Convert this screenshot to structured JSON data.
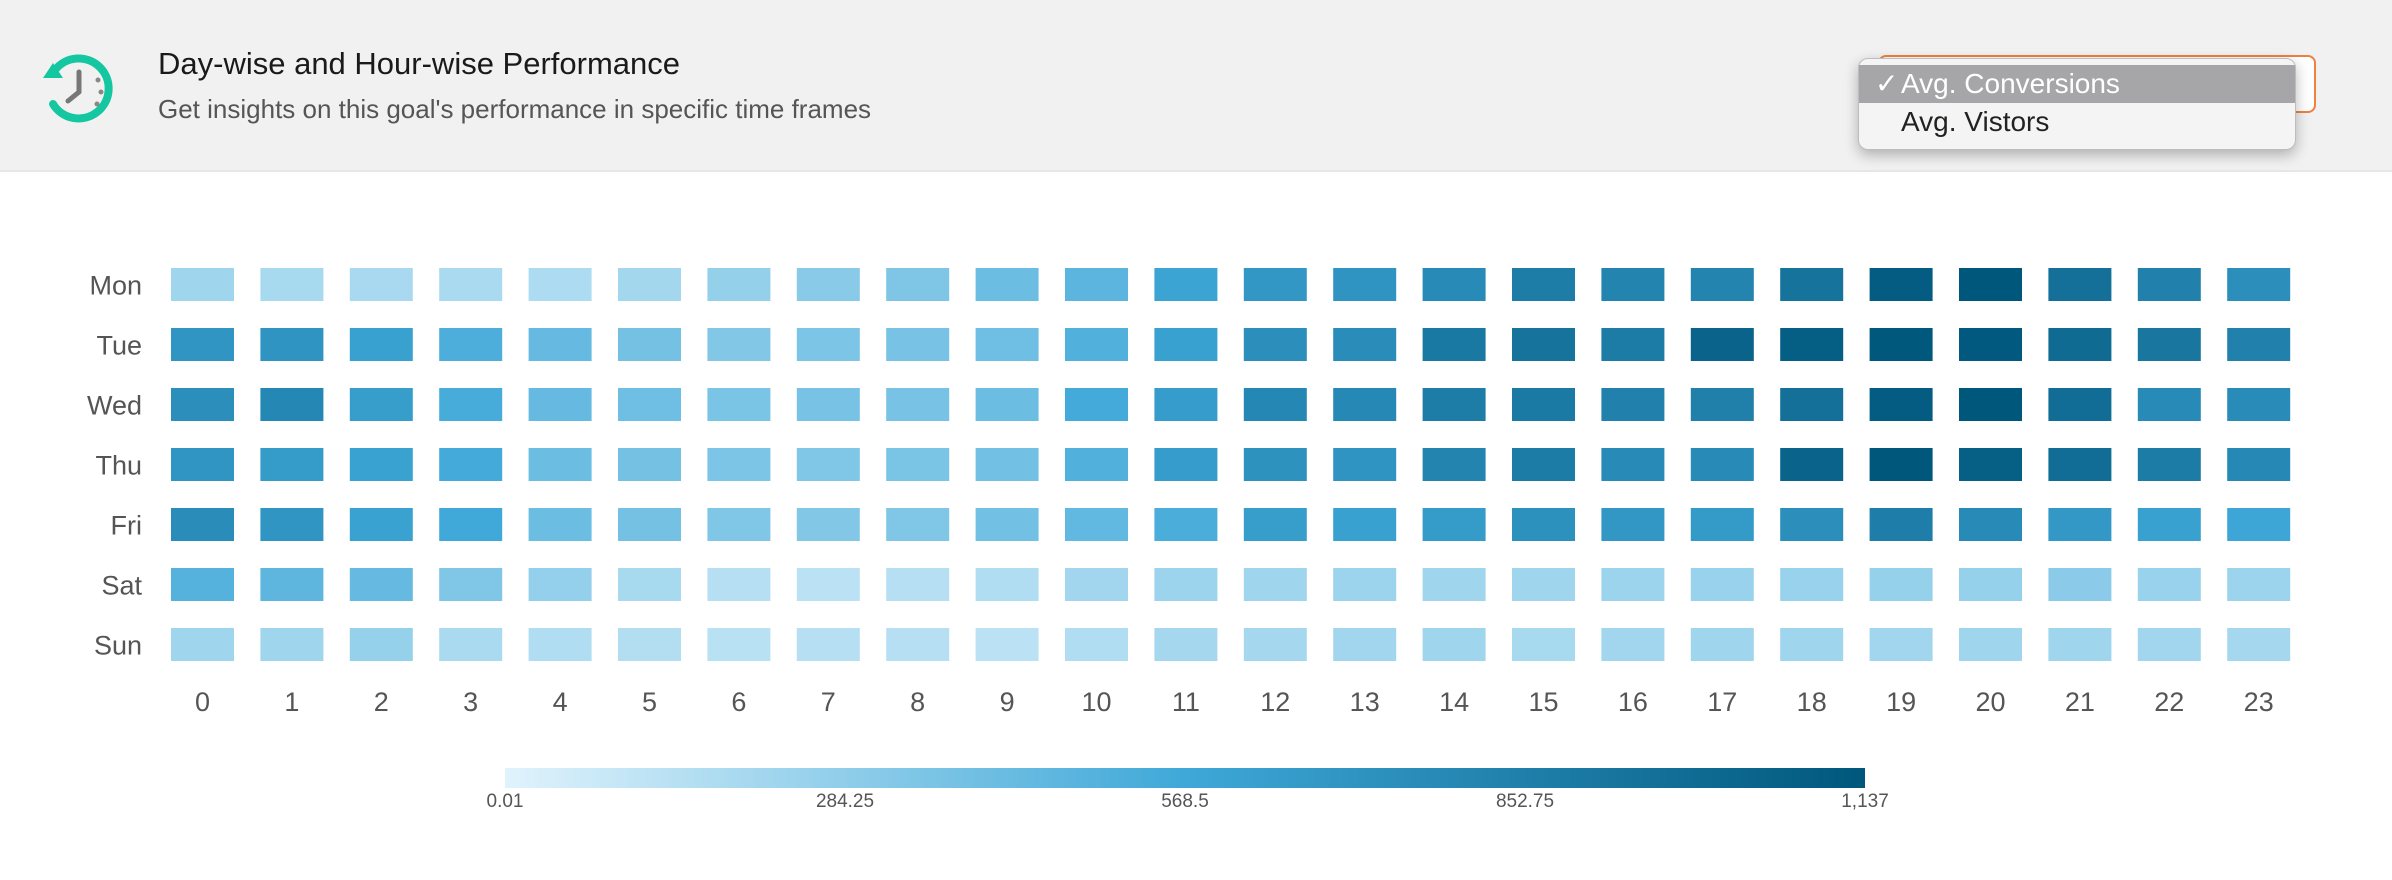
{
  "header": {
    "title": "Day-wise and Hour-wise Performance",
    "subtitle": "Get insights on this goal's performance in specific time frames",
    "icon": "clock-history-icon"
  },
  "metric_select": {
    "options": [
      "Avg. Conversions",
      "Avg. Vistors"
    ],
    "selected": "Avg. Conversions",
    "check_mark": "✓"
  },
  "colors": {
    "scale_min": "#e0f3fc",
    "scale_mid": "#3fa8d8",
    "scale_max": "#00577c",
    "accent": "#f08040",
    "icon": "#14c7a0"
  },
  "chart_data": {
    "type": "heatmap",
    "title": "",
    "xlabel": "",
    "ylabel": "",
    "x": [
      "0",
      "1",
      "2",
      "3",
      "4",
      "5",
      "6",
      "7",
      "8",
      "9",
      "10",
      "11",
      "12",
      "13",
      "14",
      "15",
      "16",
      "17",
      "18",
      "19",
      "20",
      "21",
      "22",
      "23"
    ],
    "y": [
      "Mon",
      "Tue",
      "Wed",
      "Thu",
      "Fri",
      "Sat",
      "Sun"
    ],
    "values": [
      [
        230,
        200,
        195,
        190,
        180,
        215,
        265,
        310,
        345,
        410,
        470,
        600,
        690,
        710,
        780,
        870,
        820,
        820,
        940,
        1100,
        1137,
        960,
        840,
        750
      ],
      [
        700,
        710,
        620,
        520,
        430,
        380,
        330,
        350,
        370,
        400,
        500,
        620,
        750,
        760,
        900,
        940,
        880,
        1050,
        1090,
        1130,
        1120,
        1000,
        920,
        840
      ],
      [
        750,
        800,
        640,
        540,
        430,
        400,
        360,
        370,
        370,
        410,
        550,
        650,
        800,
        790,
        870,
        890,
        840,
        850,
        960,
        1100,
        1137,
        980,
        780,
        770
      ],
      [
        700,
        660,
        610,
        550,
        410,
        380,
        350,
        340,
        360,
        390,
        500,
        650,
        720,
        710,
        820,
        880,
        780,
        780,
        1050,
        1137,
        1080,
        980,
        880,
        790
      ],
      [
        760,
        700,
        610,
        560,
        410,
        380,
        340,
        330,
        340,
        390,
        450,
        530,
        640,
        620,
        660,
        730,
        690,
        670,
        750,
        860,
        780,
        680,
        620,
        580
      ],
      [
        490,
        460,
        430,
        340,
        270,
        200,
        150,
        130,
        150,
        170,
        220,
        240,
        230,
        240,
        230,
        230,
        240,
        250,
        250,
        260,
        260,
        300,
        250,
        240
      ],
      [
        230,
        230,
        260,
        190,
        170,
        160,
        140,
        150,
        150,
        130,
        170,
        210,
        210,
        220,
        230,
        200,
        220,
        230,
        230,
        220,
        230,
        230,
        220,
        210
      ]
    ],
    "color_scale": {
      "min": 0.01,
      "max": 1137,
      "ticks": [
        "0.01",
        "284.25",
        "568.5",
        "852.75",
        "1,137"
      ]
    },
    "legend": "bottom-center"
  }
}
